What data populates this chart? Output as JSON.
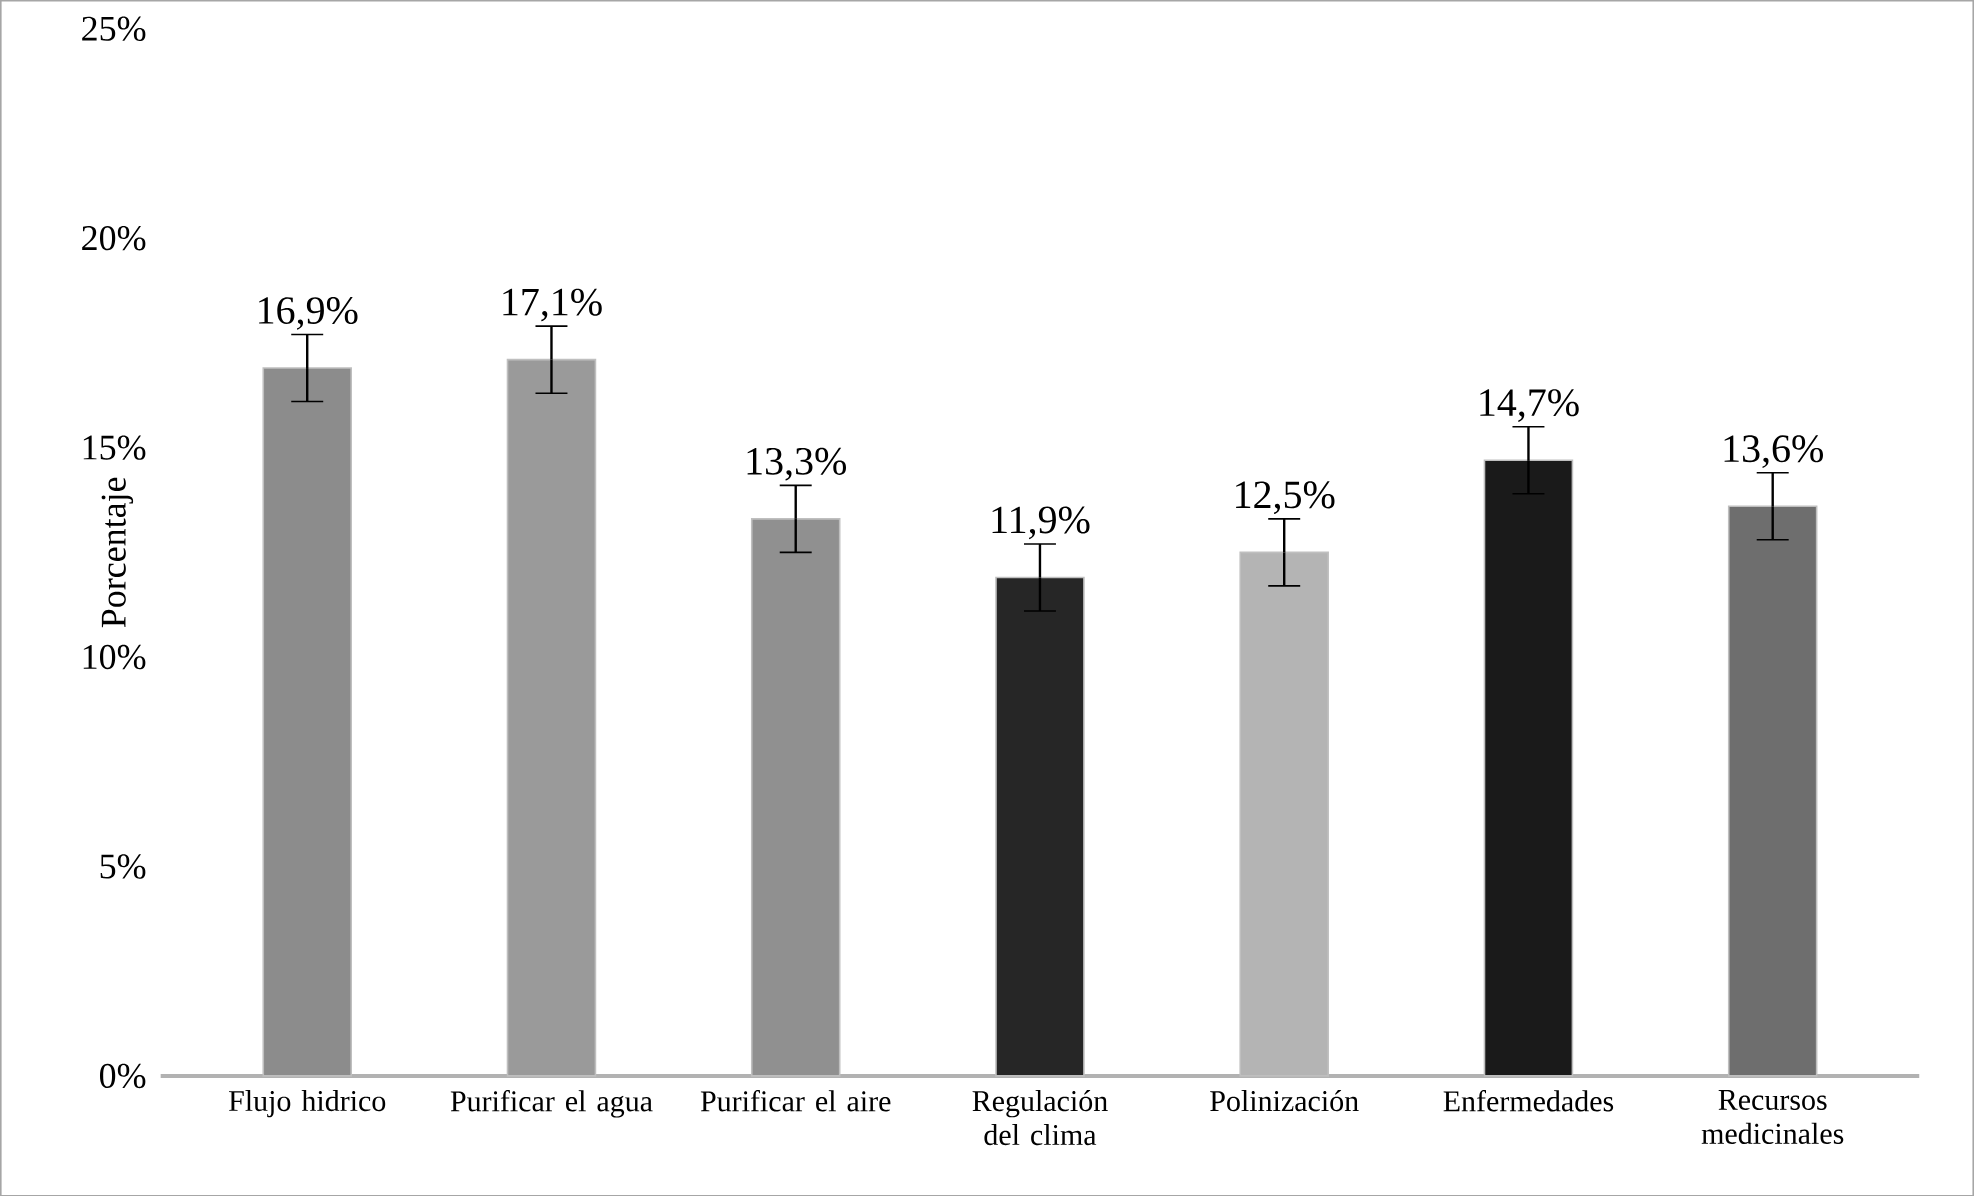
{
  "chart_data": {
    "type": "bar",
    "ylabel": "Porcentaje",
    "categories": [
      "Flujo hidrico",
      "Purificar el agua",
      "Purificar el aire",
      "Regulación del clima",
      "Polinización",
      "Enfermedades",
      "Recursos medicinales"
    ],
    "values": [
      16.9,
      17.1,
      13.3,
      11.9,
      12.5,
      14.7,
      13.6
    ],
    "errors": [
      0.8,
      0.8,
      0.8,
      0.8,
      0.8,
      0.8,
      0.8
    ],
    "value_labels": [
      "16,9%",
      "17,1%",
      "13,3%",
      "11,9%",
      "12,5%",
      "14,7%",
      "13,6%"
    ],
    "colors": [
      "#8c8c8c",
      "#9a9a9a",
      "#909090",
      "#262626",
      "#b4b4b4",
      "#1a1a1a",
      "#6e6e6e"
    ],
    "ylim": [
      0,
      25
    ],
    "yticks": [
      {
        "value": 0,
        "label": "0%"
      },
      {
        "value": 5,
        "label": "5%"
      },
      {
        "value": 10,
        "label": "10%"
      },
      {
        "value": 15,
        "label": "15%"
      },
      {
        "value": 20,
        "label": "20%"
      },
      {
        "value": 25,
        "label": "25%"
      }
    ],
    "grid": false
  }
}
